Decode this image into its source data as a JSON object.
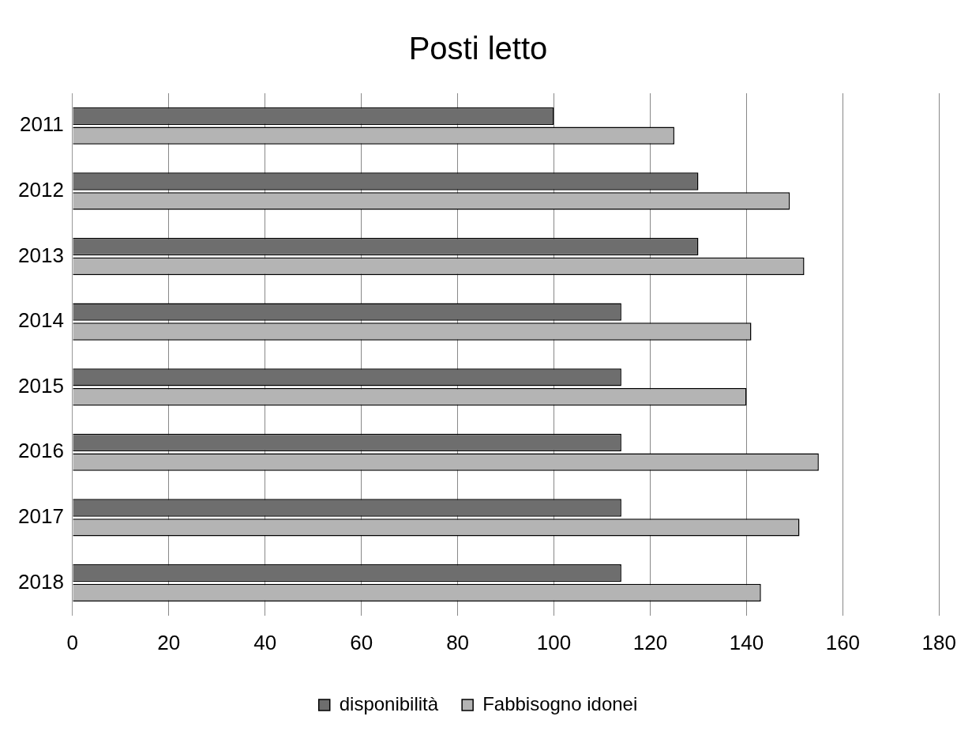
{
  "chart_data": {
    "type": "bar",
    "orientation": "horizontal",
    "title": "Posti letto",
    "categories": [
      "2011",
      "2012",
      "2013",
      "2014",
      "2015",
      "2016",
      "2017",
      "2018"
    ],
    "series": [
      {
        "name": "disponibilità",
        "color": "#6e6e6e",
        "values": [
          100,
          130,
          130,
          114,
          114,
          114,
          114,
          114
        ]
      },
      {
        "name": "Fabbisogno idonei",
        "color": "#b4b4b4",
        "values": [
          125,
          149,
          152,
          141,
          140,
          155,
          151,
          143
        ]
      }
    ],
    "xlim": [
      0,
      180
    ],
    "xticks": [
      0,
      20,
      40,
      60,
      80,
      100,
      120,
      140,
      160,
      180
    ],
    "grid": "x",
    "legend": "bottom"
  }
}
